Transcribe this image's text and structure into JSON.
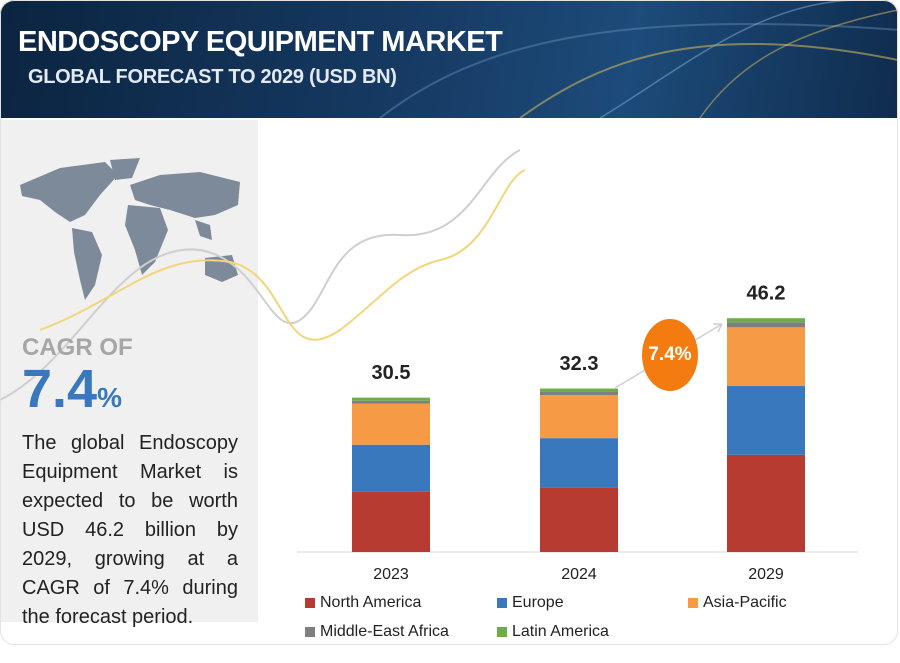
{
  "header": {
    "title": "ENDOSCOPY EQUIPMENT MARKET",
    "subtitle": "GLOBAL FORECAST TO 2029 (USD BN)"
  },
  "cagr": {
    "label": "CAGR OF",
    "value": "7.4",
    "unit": "%"
  },
  "description": "The global Endoscopy Equipment Market is expected to be worth USD 46.2 billion by 2029, growing at a CAGR of 7.4% during the forecast period.",
  "chart_data": {
    "type": "bar",
    "stacked": true,
    "categories": [
      "2023",
      "2024",
      "2029"
    ],
    "series": [
      {
        "name": "North America",
        "color": "#b83b31",
        "values": [
          12.0,
          12.8,
          19.2
        ]
      },
      {
        "name": "Europe",
        "color": "#3a78bd",
        "values": [
          9.2,
          9.7,
          13.6
        ]
      },
      {
        "name": "Asia-Pacific",
        "color": "#f79a46",
        "values": [
          8.1,
          8.5,
          11.6
        ]
      },
      {
        "name": "Middle-East Africa",
        "color": "#7f7f7f",
        "values": [
          0.6,
          0.7,
          1.0
        ]
      },
      {
        "name": "Latin America",
        "color": "#6aae45",
        "values": [
          0.6,
          0.6,
          0.8
        ]
      }
    ],
    "totals": [
      30.5,
      32.3,
      46.2
    ],
    "annotation": "7.4%",
    "ylim": [
      0,
      50
    ]
  }
}
